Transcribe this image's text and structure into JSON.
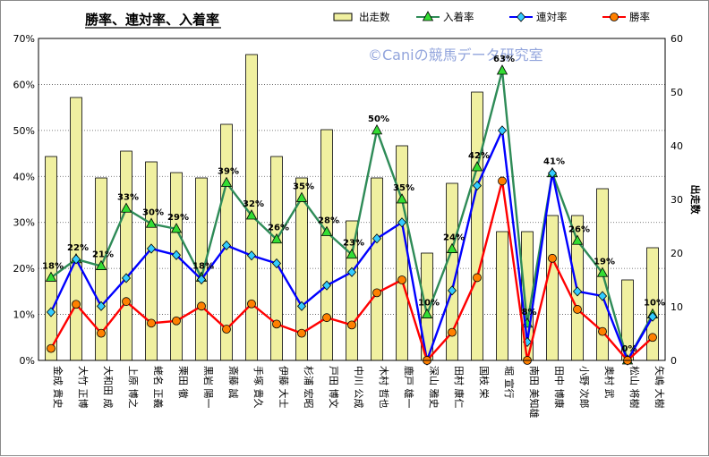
{
  "chart_data": {
    "type": "bar",
    "title": "勝率、連対率、入着率",
    "watermark": "©Caniの競馬データ研究室",
    "categories": [
      "金成 貴史",
      "大竹 正博",
      "大和田 成",
      "上原 博之",
      "蛯名 正義",
      "栗田 徹",
      "黒岩 陽一",
      "斎藤 誠",
      "手塚 貴久",
      "伊藤 大士",
      "杉浦 宏昭",
      "戸田 博文",
      "中川 公成",
      "木村 哲也",
      "鹿戸 雄一",
      "深山 雅史",
      "田村 康仁",
      "国枝 栄",
      "堀 宣行",
      "南田 美知雄",
      "田中 博康",
      "小野 次郎",
      "奥村 武",
      "松山 将樹",
      "矢嶋 大樹"
    ],
    "y_left": {
      "min": 0,
      "max": 70,
      "step": 10,
      "unit": "%"
    },
    "y_right": {
      "min": 0,
      "max": 60,
      "step": 10,
      "label": "出走数"
    },
    "grid": "dotted horizontal",
    "legend_position": "top",
    "series": [
      {
        "name": "出走数",
        "type": "bar",
        "axis": "right",
        "color": "#f0f0a0",
        "stroke": "#000000",
        "values": [
          38,
          49,
          34,
          39,
          37,
          35,
          34,
          44,
          57,
          38,
          34,
          43,
          26,
          34,
          40,
          20,
          33,
          50,
          24,
          24,
          27,
          27,
          32,
          15,
          21
        ]
      },
      {
        "name": "入着率",
        "type": "line",
        "axis": "left",
        "color": "#2e8b57",
        "marker": "triangle",
        "marker_color": "#33dd33",
        "values": [
          18,
          22,
          20.5,
          33,
          29.7,
          28.6,
          18,
          38.6,
          31.5,
          26.3,
          35.3,
          27.9,
          23,
          50,
          35,
          10,
          24.2,
          42,
          63,
          8,
          40.7,
          26,
          19,
          0,
          10
        ]
      },
      {
        "name": "連対率",
        "type": "line",
        "axis": "left",
        "color": "#0000ff",
        "marker": "diamond",
        "marker_color": "#33ccff",
        "values": [
          10.5,
          22,
          11.8,
          17.9,
          24.3,
          22.9,
          17.6,
          25,
          22.8,
          21.1,
          11.8,
          16.3,
          19.2,
          26.5,
          30,
          0,
          15.2,
          38,
          50,
          4,
          40.7,
          15,
          14,
          0,
          9.5
        ]
      },
      {
        "name": "勝率",
        "type": "line",
        "axis": "left",
        "color": "#ff0000",
        "marker": "circle",
        "marker_color": "#ff8000",
        "values": [
          2.6,
          12.2,
          5.9,
          12.8,
          8.1,
          8.6,
          11.8,
          6.8,
          12.3,
          7.9,
          5.9,
          9.3,
          7.7,
          14.7,
          17.5,
          0,
          6.1,
          18,
          39,
          0,
          22.2,
          11.1,
          6.3,
          0,
          5
        ]
      }
    ],
    "data_labels": {
      "series": "入着率",
      "items": [
        {
          "index": 0,
          "text": "18%"
        },
        {
          "index": 1,
          "text": "22%"
        },
        {
          "index": 2,
          "text": "21%"
        },
        {
          "index": 3,
          "text": "33%"
        },
        {
          "index": 4,
          "text": "30%"
        },
        {
          "index": 5,
          "text": "29%"
        },
        {
          "index": 6,
          "text": "18%"
        },
        {
          "index": 7,
          "text": "39%"
        },
        {
          "index": 8,
          "text": "32%"
        },
        {
          "index": 9,
          "text": "26%"
        },
        {
          "index": 10,
          "text": "35%"
        },
        {
          "index": 11,
          "text": "28%"
        },
        {
          "index": 12,
          "text": "23%"
        },
        {
          "index": 13,
          "text": "50%"
        },
        {
          "index": 14,
          "text": "35%"
        },
        {
          "index": 15,
          "text": "10%"
        },
        {
          "index": 16,
          "text": "24%"
        },
        {
          "index": 17,
          "text": "42%"
        },
        {
          "index": 18,
          "text": "63%"
        },
        {
          "index": 19,
          "text": "8%"
        },
        {
          "index": 20,
          "text": "41%"
        },
        {
          "index": 21,
          "text": "26%"
        },
        {
          "index": 22,
          "text": "19%"
        },
        {
          "index": 23,
          "text": "0%"
        },
        {
          "index": 24,
          "text": "10%"
        }
      ]
    }
  }
}
